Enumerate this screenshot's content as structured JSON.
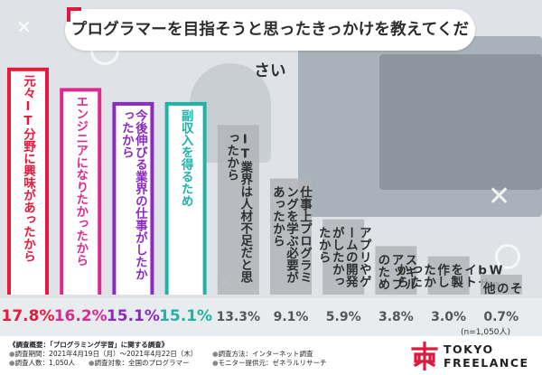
{
  "title": "プログラマーを目指そうと思ったきっかけを教えてください",
  "sample_size": "(n=1,050人)",
  "survey": {
    "heading": "《調査概要：「プログラミング学習」に関する調査》",
    "period": "調査期間：2021年4月19日（月）～2021年4月22日（木）",
    "method": "調査方法：インターネット調査",
    "people": "調査人数：1,050人",
    "target": "調査対象：全国のプログラマー",
    "monitor": "モニター提供元：ゼネラルリサーチ"
  },
  "logo": {
    "line1": "TOKYO",
    "line2": "FREELANCE"
  },
  "colors": {
    "highlight_text": "#d81c3f",
    "gray_text": "#333333"
  },
  "chart_data": {
    "type": "bar",
    "categories": [
      "元々IT分野に興味があったから",
      "エンジニアになりたかったから",
      "今後伸びる業界の仕事がしたかったから",
      "副収入を得るため",
      "IT業界は人材不足だと思ったから",
      "仕事上プログラミングを学ぶ必要があったから",
      "アプリやゲームの開発がしたかったから",
      "スキルアップのため",
      "Webサイトを製作したかったから",
      "その他"
    ],
    "values": [
      17.8,
      16.2,
      15.1,
      15.1,
      13.3,
      9.1,
      5.9,
      3.8,
      3.0,
      0.7
    ],
    "value_labels": [
      "17.8%",
      "16.2%",
      "15.1%",
      "15.1%",
      "13.3%",
      "9.1%",
      "5.9%",
      "3.8%",
      "3.0%",
      "0.7%"
    ],
    "bar_colors": [
      "#e8173c",
      "#dd2a8f",
      "#8c2bc1",
      "#1fb3a7",
      "#b1b4b7",
      "#b1b4b7",
      "#b1b4b7",
      "#b1b4b7",
      "#b1b4b7",
      "#b1b4b7"
    ],
    "label_colors": [
      "#e8173c",
      "#dd2a8f",
      "#8c2bc1",
      "#1fb3a7",
      "#555555",
      "#555555",
      "#555555",
      "#555555",
      "#555555",
      "#555555"
    ],
    "ylim": [
      0,
      18
    ]
  }
}
